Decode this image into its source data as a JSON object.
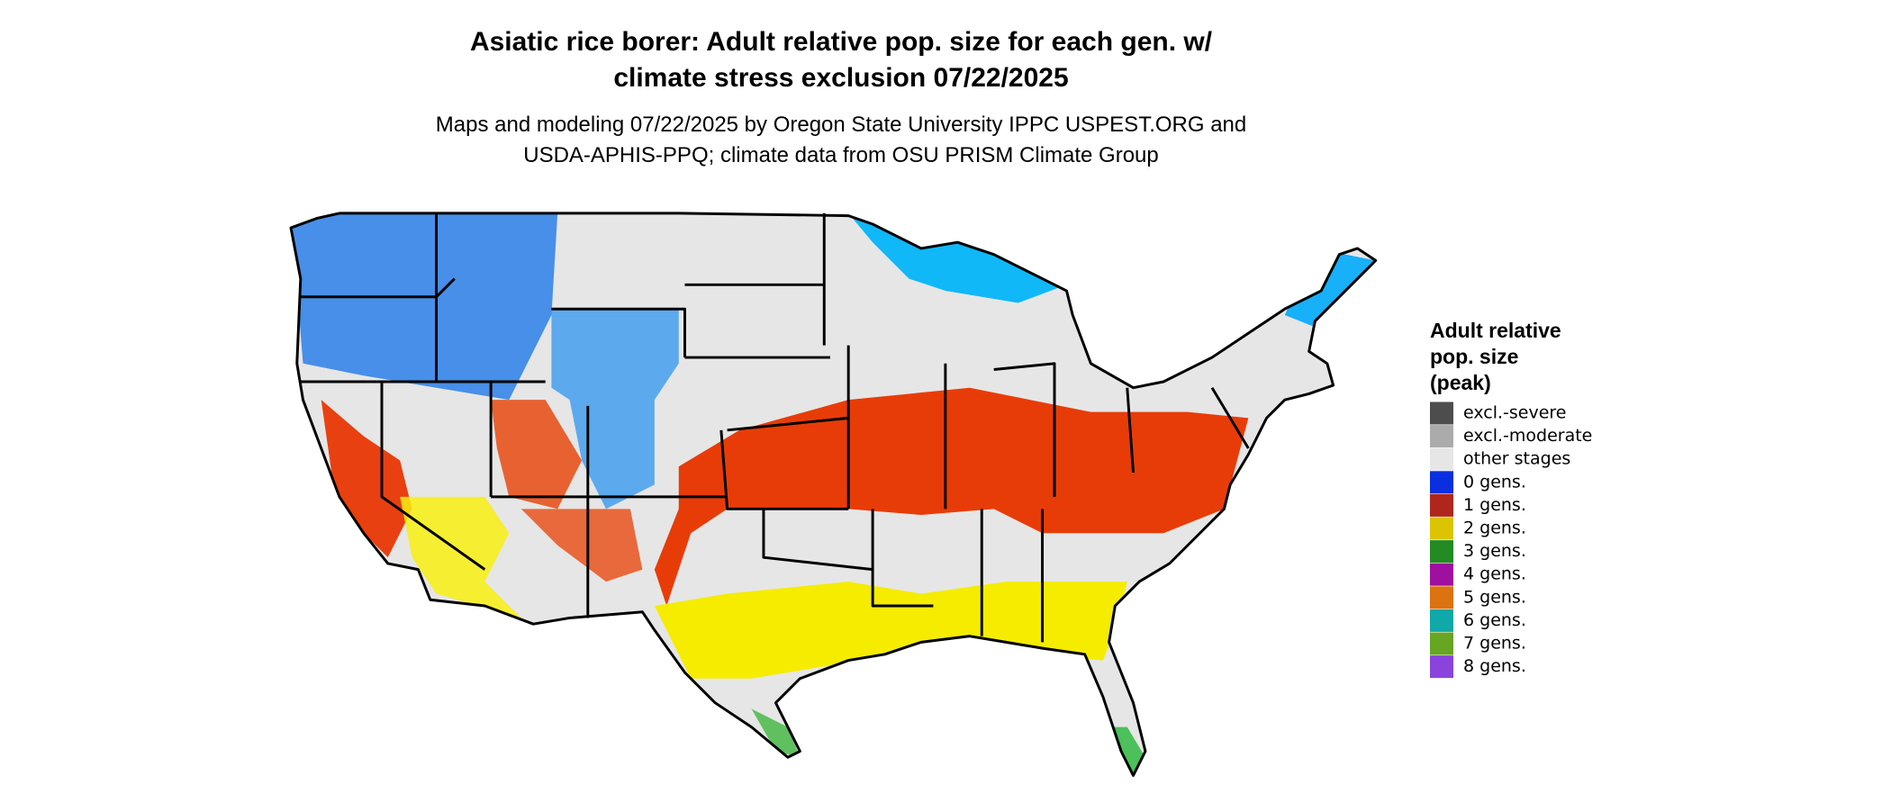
{
  "title": [
    "Asiatic rice borer: Adult relative pop. size for each gen. w/",
    "climate stress exclusion 07/22/2025"
  ],
  "subtitle": [
    "Maps and modeling 07/22/2025 by Oregon State University IPPC USPEST.ORG and",
    "USDA-APHIS-PPQ; climate data from OSU PRISM Climate Group"
  ],
  "legend": {
    "title": [
      "Adult relative",
      "pop. size",
      "(peak)"
    ],
    "items": [
      {
        "label": "excl.-severe",
        "color": "#4d4d4d"
      },
      {
        "label": "excl.-moderate",
        "color": "#ababab"
      },
      {
        "label": "other stages",
        "color": "#e6e6e6"
      },
      {
        "label": "0 gens.",
        "color": "#0a2fe0"
      },
      {
        "label": "1 gens.",
        "color": "#b0261c"
      },
      {
        "label": "2 gens.",
        "color": "#dcc400"
      },
      {
        "label": "3 gens.",
        "color": "#228b22"
      },
      {
        "label": "4 gens.",
        "color": "#a010a0"
      },
      {
        "label": "5 gens.",
        "color": "#dd7310"
      },
      {
        "label": "6 gens.",
        "color": "#10a8a8"
      },
      {
        "label": "7 gens.",
        "color": "#66a622"
      },
      {
        "label": "8 gens.",
        "color": "#8a44dd"
      }
    ]
  }
}
